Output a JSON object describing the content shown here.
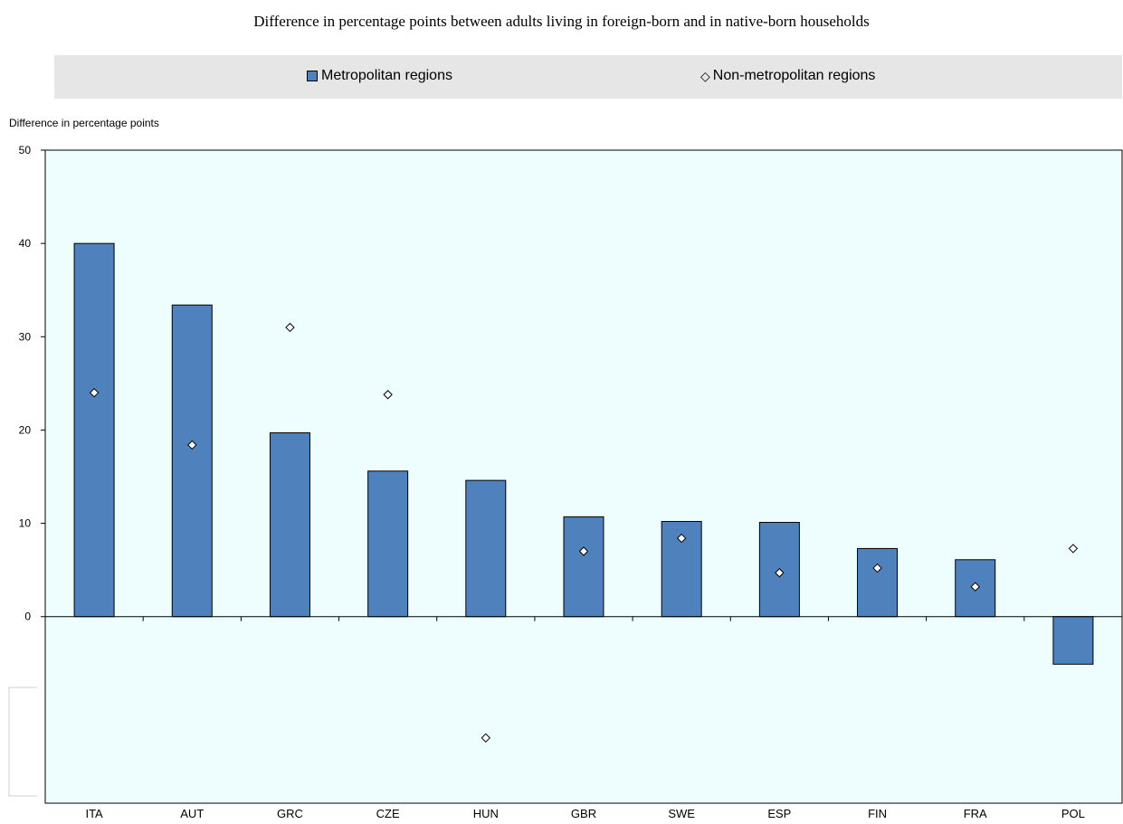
{
  "chart_data": {
    "type": "bar",
    "title": "Difference in percentage points between adults living in foreign-born and in native-born households",
    "ylabel": "Difference in percentage points",
    "ylim": [
      -20,
      50
    ],
    "yticks": [
      0,
      10,
      20,
      30,
      40,
      50
    ],
    "legend_position": "top",
    "grid": false,
    "categories": [
      "ITA",
      "AUT",
      "GRC",
      "CZE",
      "HUN",
      "GBR",
      "SWE",
      "ESP",
      "FIN",
      "FRA",
      "POL"
    ],
    "series": [
      {
        "name": "Metropolitan regions",
        "mark": "bar",
        "color": "#4f81bd",
        "values": [
          40.0,
          33.4,
          19.7,
          15.6,
          14.6,
          10.7,
          10.2,
          10.1,
          7.3,
          6.1,
          -5.1
        ]
      },
      {
        "name": "Non-metropolitan regions",
        "mark": "diamond",
        "color": "#ffffff",
        "values": [
          24.0,
          18.4,
          31.0,
          23.8,
          -13.0,
          7.0,
          8.4,
          4.7,
          5.2,
          3.2,
          7.3
        ]
      }
    ]
  },
  "legend": {
    "series1_label": "Metropolitan regions",
    "series2_symbol": "◇",
    "series2_label": "Non-metropolitan regions"
  }
}
